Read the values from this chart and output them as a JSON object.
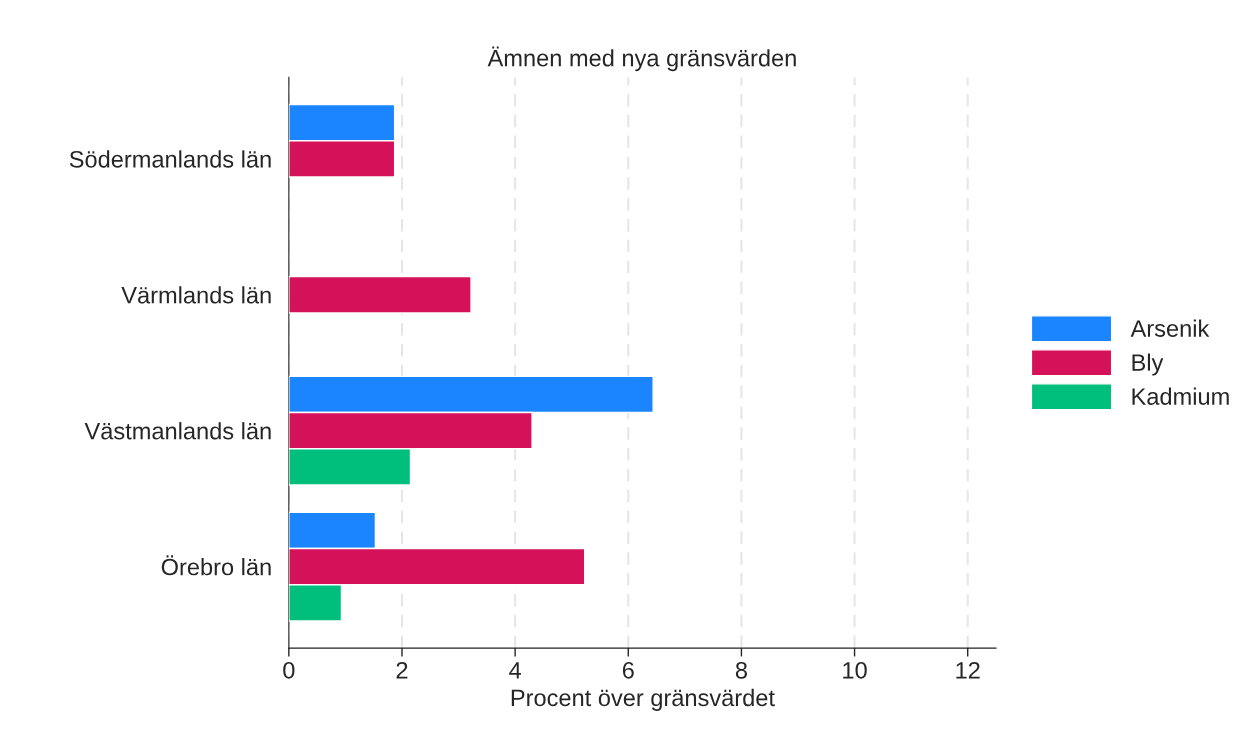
{
  "chart_data": {
    "type": "bar",
    "orientation": "horizontal",
    "title": "Ämnen med nya gränsvärden",
    "xlabel": "Procent över gränsvärdet",
    "categories": [
      "Södermanlands län",
      "Värmlands län",
      "Västmanlands län",
      "Örebro län"
    ],
    "series": [
      {
        "name": "Arsenik",
        "color": "#1a85ff",
        "values": [
          1.87,
          null,
          6.44,
          1.53
        ]
      },
      {
        "name": "Bly",
        "color": "#d41159",
        "values": [
          1.87,
          3.22,
          4.3,
          5.23
        ]
      },
      {
        "name": "Kadmium",
        "color": "#00bf7d",
        "values": [
          null,
          null,
          2.15,
          0.93
        ]
      }
    ],
    "xlim": [
      0,
      12.5
    ],
    "xticks": [
      0,
      2,
      4,
      6,
      8,
      10,
      12
    ],
    "grid": "x",
    "legend": "right"
  }
}
